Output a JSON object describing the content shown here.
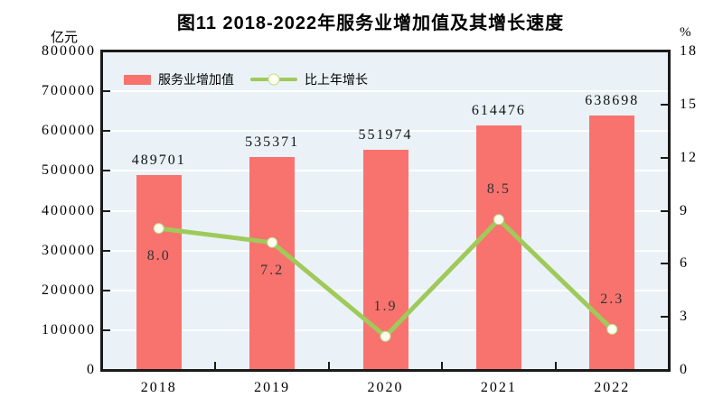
{
  "title": "图11  2018-2022年服务业增加值及其增长速度",
  "chart_data": {
    "type": "bar",
    "combo": "bar+line dual-axis",
    "categories": [
      "2018",
      "2019",
      "2020",
      "2021",
      "2022"
    ],
    "series": [
      {
        "name": "服务业增加值",
        "type": "bar",
        "axis": "left",
        "values": [
          489701,
          535371,
          551974,
          614476,
          638698
        ],
        "color": "#F8736E"
      },
      {
        "name": "比上年增长",
        "type": "line",
        "axis": "right",
        "values": [
          8.0,
          7.2,
          1.9,
          8.5,
          2.3
        ],
        "color": "#9FCA5A",
        "marker_fill": "#FFFFF0",
        "marker_stroke": "#BBDC8C",
        "label_positions": [
          "below",
          "below",
          "above",
          "above",
          "above"
        ]
      }
    ],
    "left_axis": {
      "unit": "亿元",
      "min": 0,
      "max": 800000,
      "tick_step": 100000,
      "tick_labels": [
        "800000",
        "700000",
        "600000",
        "500000",
        "400000",
        "300000",
        "200000",
        "100000",
        "0"
      ]
    },
    "right_axis": {
      "unit": "%",
      "min": 0,
      "max": 18,
      "tick_step": 3,
      "tick_labels": [
        "18",
        "15",
        "12",
        "9",
        "6",
        "3",
        "0"
      ]
    },
    "grid": true,
    "legend_position": "top-left-inside",
    "colors": {
      "plot_bg": "#EAF2F7",
      "grid_line": "#FFFFFF",
      "axis": "#1A1A1A",
      "text": "#000000",
      "line_label": "#333333"
    }
  }
}
